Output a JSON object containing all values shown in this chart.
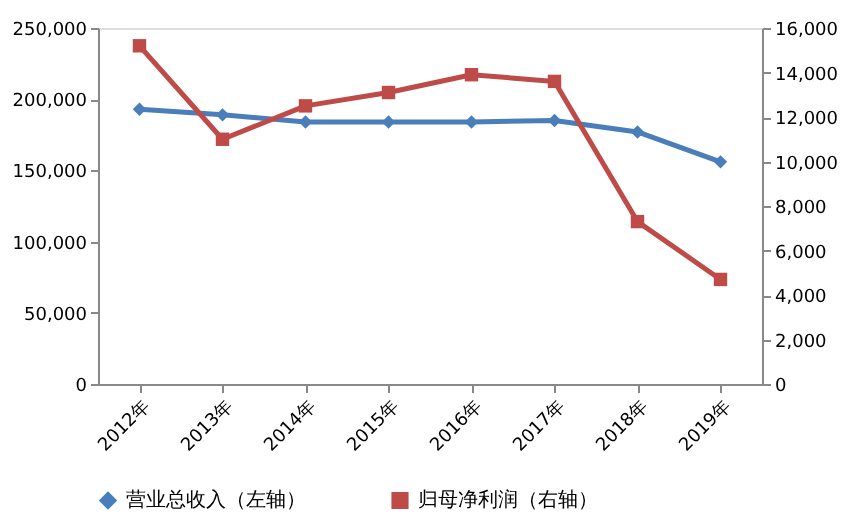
{
  "chart_data": {
    "type": "line",
    "categories": [
      "2012年",
      "2013年",
      "2014年",
      "2015年",
      "2016年",
      "2017年",
      "2018年",
      "2019年"
    ],
    "series": [
      {
        "name": "营业总收入（左轴）",
        "color": "#4a7ebb",
        "marker": "diamond",
        "values": [
          193000,
          189000,
          184000,
          184000,
          184000,
          185000,
          177000,
          156000
        ]
      },
      {
        "name": "归母净利润（右轴）",
        "color": "#be4b48",
        "marker": "square",
        "axis": "y2",
        "values": [
          15200,
          11000,
          12500,
          13100,
          13900,
          13600,
          7300,
          4700
        ]
      }
    ],
    "ylim": [
      0,
      250000
    ],
    "yticks": [
      0,
      {
        "value": 50000,
        "label": "50,000"
      },
      {
        "value": 100000,
        "label": "100,000"
      },
      {
        "value": 150000,
        "label": "150,000"
      },
      {
        "value": 200000,
        "label": "200,000"
      },
      {
        "value": 250000,
        "label": "250,000"
      }
    ],
    "y2lim": [
      0,
      16000
    ],
    "y2ticks": [
      0,
      {
        "value": 2000,
        "label": "2,000"
      },
      {
        "value": 4000,
        "label": "4,000"
      },
      {
        "value": 6000,
        "label": "6,000"
      },
      {
        "value": 8000,
        "label": "8,000"
      },
      {
        "value": 10000,
        "label": "10,000"
      },
      {
        "value": 12000,
        "label": "12,000"
      },
      {
        "value": 14000,
        "label": "14,000"
      },
      {
        "value": 16000,
        "label": "16,000"
      }
    ],
    "grid": false,
    "legend": "bottom"
  }
}
